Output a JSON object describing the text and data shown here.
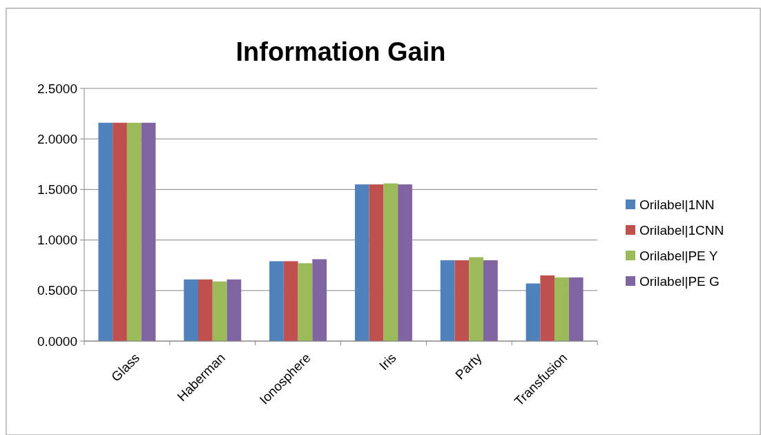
{
  "chart_data": {
    "type": "bar",
    "title": "Information Gain",
    "categories": [
      "Glass",
      "Haberman",
      "Ionosphere",
      "Iris",
      "Party",
      "Transfusion"
    ],
    "series": [
      {
        "name": "Orilabel|1NN",
        "color": "#4f81bd",
        "values": [
          2.16,
          0.61,
          0.79,
          1.55,
          0.8,
          0.57
        ]
      },
      {
        "name": "Orilabel|1CNN",
        "color": "#c0504d",
        "values": [
          2.16,
          0.61,
          0.79,
          1.55,
          0.8,
          0.65
        ]
      },
      {
        "name": "Orilabel|PE Y",
        "color": "#9bbb59",
        "values": [
          2.16,
          0.59,
          0.77,
          1.56,
          0.83,
          0.63
        ]
      },
      {
        "name": "Orilabel|PE G",
        "color": "#8064a2",
        "values": [
          2.16,
          0.61,
          0.81,
          1.55,
          0.8,
          0.63
        ]
      }
    ],
    "ylim": [
      0,
      2.5
    ],
    "yticks": [
      {
        "value": 0,
        "label": "0.0000"
      },
      {
        "value": 0.5,
        "label": "0.5000"
      },
      {
        "value": 1,
        "label": "1.0000"
      },
      {
        "value": 1.5,
        "label": "1.5000"
      },
      {
        "value": 2,
        "label": "2.0000"
      },
      {
        "value": 2.5,
        "label": "2.5000"
      }
    ],
    "grid": "y",
    "legend": "right"
  }
}
